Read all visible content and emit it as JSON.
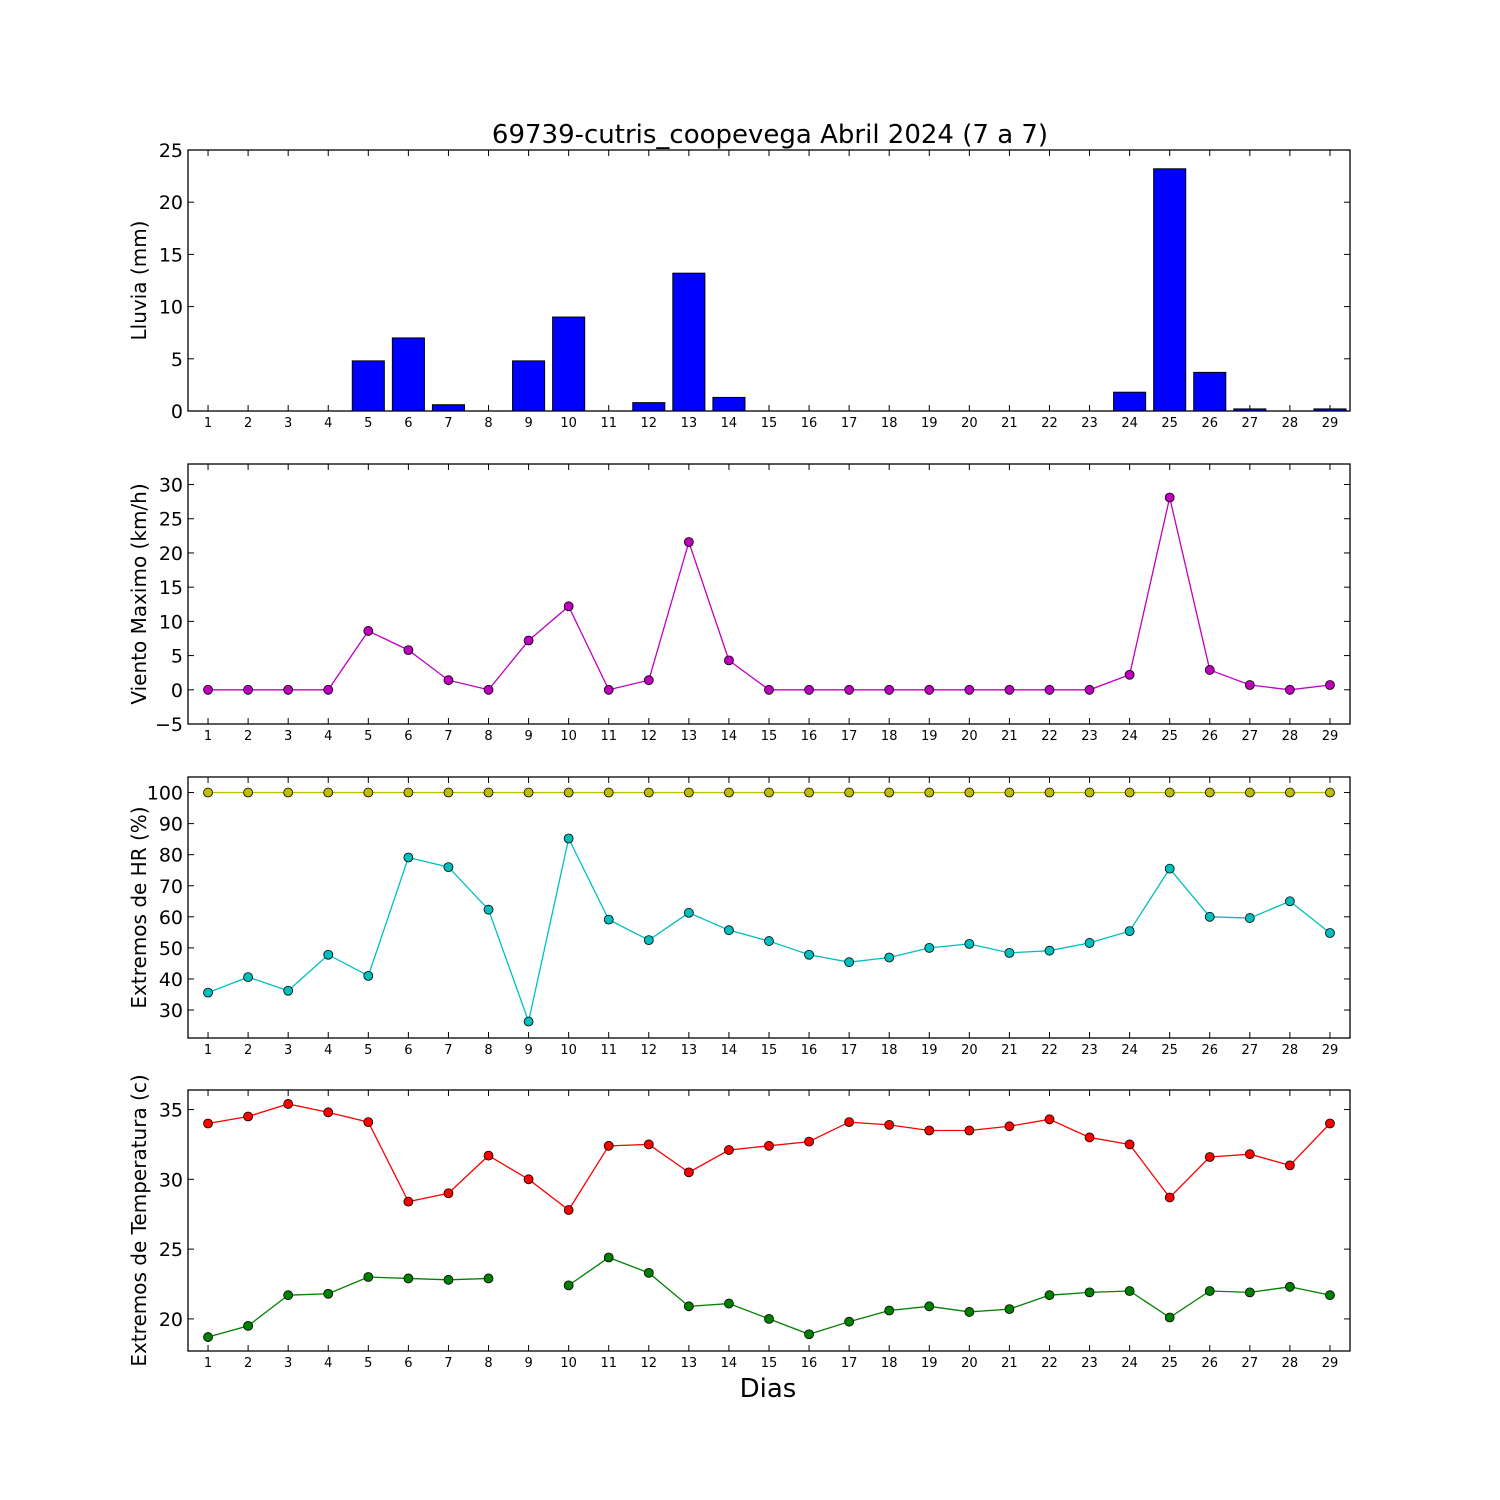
{
  "figure_title": "69739-cutris_coopevega Abril 2024  (7 a 7)",
  "xlabel": "Dias",
  "days": [
    1,
    2,
    3,
    4,
    5,
    6,
    7,
    8,
    9,
    10,
    11,
    12,
    13,
    14,
    15,
    16,
    17,
    18,
    19,
    20,
    21,
    22,
    23,
    24,
    25,
    26,
    27,
    28,
    29
  ],
  "colors": {
    "rain_bar": "#0000ff",
    "wind": "#bf00bf",
    "hr_max": "#bfbf00",
    "hr_min": "#00bfbf",
    "temp_max": "#ff0000",
    "temp_min": "#008000"
  },
  "chart_data": [
    {
      "type": "bar",
      "ylabel": "Lluvia (mm)",
      "ylim": [
        0,
        25
      ],
      "yticks": [
        0,
        5,
        10,
        15,
        20,
        25
      ],
      "categories": [
        1,
        2,
        3,
        4,
        5,
        6,
        7,
        8,
        9,
        10,
        11,
        12,
        13,
        14,
        15,
        16,
        17,
        18,
        19,
        20,
        21,
        22,
        23,
        24,
        25,
        26,
        27,
        28,
        29
      ],
      "series": [
        {
          "values": [
            0,
            0,
            0,
            0,
            4.8,
            7.0,
            0.6,
            0,
            4.8,
            9.0,
            0,
            0.8,
            13.2,
            1.3,
            0,
            0,
            0,
            0,
            0,
            0,
            0,
            0,
            0,
            1.8,
            23.2,
            3.7,
            0.2,
            0,
            0.2
          ]
        }
      ]
    },
    {
      "type": "line",
      "ylabel": "Viento Maximo (km/h)",
      "ylim": [
        -5,
        33
      ],
      "yticks": [
        -5,
        0,
        5,
        10,
        15,
        20,
        25,
        30
      ],
      "x": [
        1,
        2,
        3,
        4,
        5,
        6,
        7,
        8,
        9,
        10,
        11,
        12,
        13,
        14,
        15,
        16,
        17,
        18,
        19,
        20,
        21,
        22,
        23,
        24,
        25,
        26,
        27,
        28,
        29
      ],
      "series": [
        {
          "values": [
            0,
            0,
            0,
            0,
            8.6,
            5.8,
            1.4,
            0,
            7.2,
            12.2,
            0,
            1.4,
            21.6,
            4.3,
            0,
            0,
            0,
            0,
            0,
            0,
            0,
            0,
            0,
            2.2,
            28.1,
            2.9,
            0.7,
            0,
            0.7
          ]
        }
      ]
    },
    {
      "type": "line",
      "ylabel": "Extremos de HR (%)",
      "ylim": [
        21,
        105
      ],
      "yticks": [
        30,
        40,
        50,
        60,
        70,
        80,
        90,
        100
      ],
      "x": [
        1,
        2,
        3,
        4,
        5,
        6,
        7,
        8,
        9,
        10,
        11,
        12,
        13,
        14,
        15,
        16,
        17,
        18,
        19,
        20,
        21,
        22,
        23,
        24,
        25,
        26,
        27,
        28,
        29
      ],
      "series": [
        {
          "values": [
            100,
            100,
            100,
            100,
            100,
            100,
            100,
            100,
            100,
            100,
            100,
            100,
            100,
            100,
            100,
            100,
            100,
            100,
            100,
            100,
            100,
            100,
            100,
            100,
            100,
            100,
            100,
            100,
            100
          ]
        },
        {
          "values": [
            35.6,
            40.6,
            36.2,
            47.8,
            41.0,
            79.1,
            76.0,
            62.3,
            26.3,
            85.2,
            59.1,
            52.5,
            61.3,
            55.7,
            52.2,
            47.8,
            45.4,
            46.9,
            50.0,
            51.3,
            48.4,
            49.1,
            51.6,
            55.4,
            75.5,
            60.0,
            59.6,
            65.0,
            54.8
          ]
        }
      ]
    },
    {
      "type": "line",
      "ylabel": "Extremos de Temperatura (c)",
      "ylim": [
        17.7,
        36.4
      ],
      "yticks": [
        20,
        25,
        30,
        35
      ],
      "x": [
        1,
        2,
        3,
        4,
        5,
        6,
        7,
        8,
        9,
        10,
        11,
        12,
        13,
        14,
        15,
        16,
        17,
        18,
        19,
        20,
        21,
        22,
        23,
        24,
        25,
        26,
        27,
        28,
        29
      ],
      "series": [
        {
          "values": [
            34.0,
            34.5,
            35.4,
            34.8,
            34.1,
            28.4,
            29.0,
            31.7,
            30.0,
            27.8,
            32.4,
            32.5,
            30.5,
            32.1,
            32.4,
            32.7,
            34.1,
            33.9,
            33.5,
            33.5,
            33.8,
            34.3,
            33.0,
            32.5,
            28.7,
            31.6,
            31.8,
            31.0,
            34.0
          ]
        },
        {
          "values": [
            18.7,
            19.5,
            21.7,
            21.8,
            23.0,
            22.9,
            22.8,
            22.9,
            null,
            22.4,
            24.4,
            23.3,
            20.9,
            21.1,
            20.0,
            18.9,
            19.8,
            20.6,
            20.9,
            20.5,
            20.7,
            21.7,
            21.9,
            22.0,
            20.1,
            22.0,
            21.9,
            22.3,
            21.7
          ]
        }
      ]
    }
  ]
}
